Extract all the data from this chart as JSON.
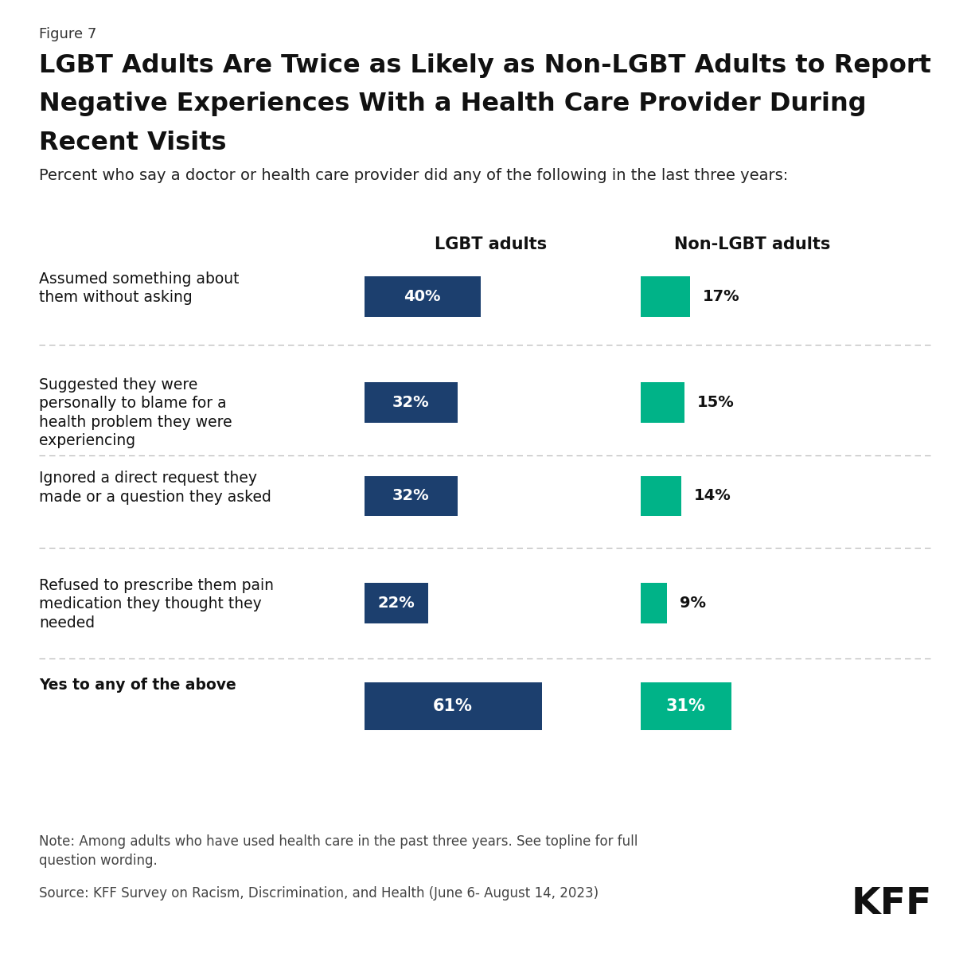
{
  "figure_label": "Figure 7",
  "title_line1": "LGBT Adults Are Twice as Likely as Non-LGBT Adults to Report",
  "title_line2": "Negative Experiences With a Health Care Provider During",
  "title_line3": "Recent Visits",
  "subtitle": "Percent who say a doctor or health care provider did any of the following in the last three years:",
  "col1_header": "LGBT adults",
  "col2_header": "Non-LGBT adults",
  "categories": [
    "Assumed something about\nthem without asking",
    "Suggested they were\npersonally to blame for a\nhealth problem they were\nexperiencing",
    "Ignored a direct request they\nmade or a question they asked",
    "Refused to prescribe them pain\nmedication they thought they\nneeded",
    "Yes to any of the above"
  ],
  "categories_bold": [
    false,
    false,
    false,
    false,
    true
  ],
  "lgbt_values": [
    40,
    32,
    32,
    22,
    61
  ],
  "non_lgbt_values": [
    17,
    15,
    14,
    9,
    31
  ],
  "lgbt_color": "#1c3f6e",
  "non_lgbt_color": "#00b388",
  "note": "Note: Among adults who have used health care in the past three years. See topline for full\nquestion wording.",
  "source": "Source: KFF Survey on Racism, Discrimination, and Health (June 6- August 14, 2023)",
  "kff_logo": "KFF",
  "background_color": "#ffffff",
  "fig_width": 12.2,
  "fig_height": 12.12,
  "dpi": 100
}
